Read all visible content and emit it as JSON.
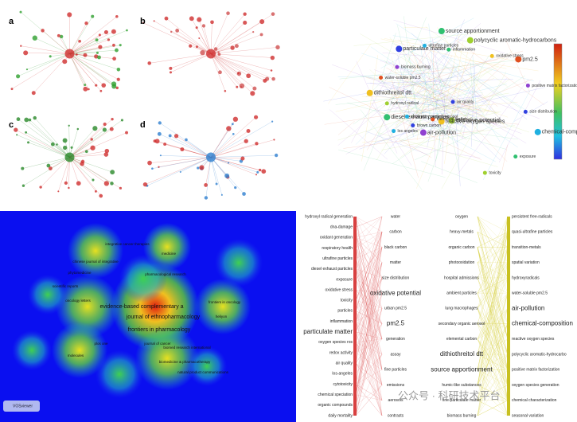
{
  "panels": {
    "letters": [
      "a",
      "b",
      "c",
      "d"
    ]
  },
  "network": {
    "labels": [
      "air quality",
      "los angeles",
      "source apportionment",
      "oxidative potential",
      "dithiothreitol dtt",
      "pm2.5",
      "air-pollution",
      "particulate matter",
      "chemical-composition",
      "diesel exhaust particles",
      "polycyclic aromatic-hydrocarbons",
      "reactive oxygen species",
      "water-soluble pm2.5",
      "positive matrix factorization",
      "brown carbon",
      "ultrafine particles",
      "exposure",
      "hydroxyl radical",
      "oxidative stress",
      "elemental carbon",
      "biomass burning",
      "size distribution",
      "secondary organic aerosol",
      "inflammation",
      "toxicity"
    ]
  },
  "density": {
    "labels": [
      "integrative cancer therapies",
      "chinese journal of integrative",
      "medicine",
      "evidence-based complementary a",
      "journal of ethnopharmacology",
      "frontiers in pharmacology",
      "frontiers in oncology",
      "oncology letters",
      "plos one",
      "molecules",
      "biomedicine & pharmacotherapy",
      "scientific reports",
      "biomed research international",
      "heliyon",
      "phytomedicine",
      "pharmacological research",
      "journal of cancer",
      "natural product communications"
    ],
    "logo": "VOSviewer"
  },
  "alluvial": {
    "left": [
      "hydroxyl radical generation",
      "dna-damage",
      "oxidant generation",
      "respiratory health",
      "ultrafine particles",
      "diesel exhaust particles",
      "exposure",
      "oxidative stress",
      "toxicity",
      "particles",
      "inflammation",
      "particulate matter",
      "oxygen species ros",
      "redox activity",
      "air quality",
      "los-angeles",
      "cytotoxicity",
      "chemical speciation",
      "organic compounds",
      "daily mortality"
    ],
    "middle": [
      "water",
      "carbon",
      "black carbon",
      "matter",
      "size distribution",
      "oxidative potential",
      "urban pm2.5",
      "pm2.5",
      "generation",
      "assay",
      "fine particles",
      "emissions",
      "aerosols",
      "contrasts"
    ],
    "center": [
      "oxygen",
      "heavy-metals",
      "organic carbon",
      "photooxidation",
      "hospital admissions",
      "ambient particles",
      "lung macrophages",
      "secondary organic aerosol",
      "elemental carbon",
      "dithiothreitol dtt",
      "source apportionment",
      "humic-like substances",
      "fine-particulate matter",
      "biomass burning"
    ],
    "right": [
      "persistent free-radicals",
      "quasi-ultrafine particles",
      "transition-metals",
      "spatial variation",
      "hydroxyradicals",
      "water-soluble pm2.5",
      "air-pollution",
      "chemical-composition",
      "reactive oxygen species",
      "polycyclic aromatic-hydrocarbo",
      "positive matrix factorization",
      "oxygen species generation",
      "chemical characterization",
      "seasonal variation"
    ],
    "watermark": "公众号 · 科研技术平台"
  }
}
